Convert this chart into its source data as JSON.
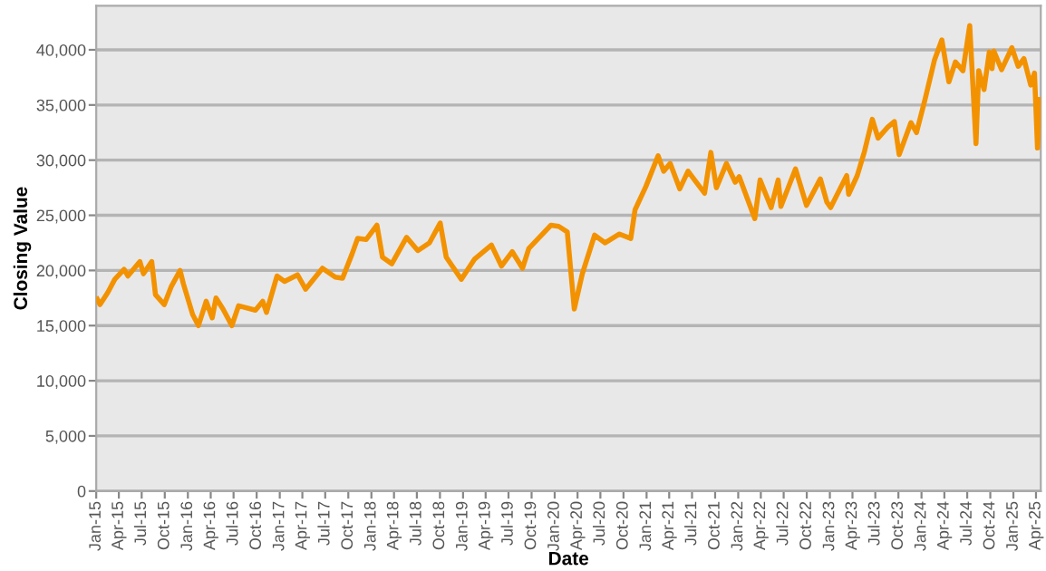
{
  "chart_data": {
    "type": "line",
    "xlabel": "Date",
    "ylabel": "Closing Value",
    "x": [
      "2015-01-05",
      "2015-01-16",
      "2015-02-16",
      "2015-03-16",
      "2015-04-22",
      "2015-05-07",
      "2015-06-24",
      "2015-07-08",
      "2015-08-10",
      "2015-08-25",
      "2015-09-29",
      "2015-10-26",
      "2015-12-01",
      "2015-12-14",
      "2016-01-20",
      "2016-02-12",
      "2016-03-14",
      "2016-04-07",
      "2016-04-22",
      "2016-05-20",
      "2016-06-24",
      "2016-07-21",
      "2016-09-26",
      "2016-10-25",
      "2016-11-09",
      "2016-12-21",
      "2017-01-20",
      "2017-03-13",
      "2017-04-14",
      "2017-06-20",
      "2017-08-10",
      "2017-09-08",
      "2017-10-16",
      "2017-11-07",
      "2017-12-11",
      "2018-01-23",
      "2018-02-14",
      "2018-03-23",
      "2018-05-21",
      "2018-07-05",
      "2018-08-20",
      "2018-10-02",
      "2018-10-26",
      "2018-12-25",
      "2019-02-15",
      "2019-04-24",
      "2019-06-03",
      "2019-07-16",
      "2019-08-26",
      "2019-09-20",
      "2019-12-17",
      "2020-01-17",
      "2020-02-20",
      "2020-03-19",
      "2020-04-20",
      "2020-06-08",
      "2020-07-20",
      "2020-09-15",
      "2020-10-30",
      "2020-11-16",
      "2020-12-29",
      "2021-02-16",
      "2021-03-10",
      "2021-04-05",
      "2021-05-13",
      "2021-06-15",
      "2021-08-20",
      "2021-09-14",
      "2021-10-06",
      "2021-11-15",
      "2021-12-20",
      "2022-01-05",
      "2022-03-08",
      "2022-03-29",
      "2022-05-12",
      "2022-06-09",
      "2022-06-20",
      "2022-08-17",
      "2022-09-30",
      "2022-11-24",
      "2022-12-20",
      "2023-01-04",
      "2023-03-09",
      "2023-03-17",
      "2023-04-20",
      "2023-05-19",
      "2023-06-19",
      "2023-07-12",
      "2023-08-20",
      "2023-09-15",
      "2023-10-04",
      "2023-11-20",
      "2023-12-12",
      "2024-01-15",
      "2024-02-22",
      "2024-03-22",
      "2024-04-19",
      "2024-05-15",
      "2024-06-14",
      "2024-07-11",
      "2024-08-05",
      "2024-08-16",
      "2024-09-06",
      "2024-09-27",
      "2024-10-08",
      "2024-10-15",
      "2024-11-15",
      "2024-12-26",
      "2025-01-20",
      "2025-02-12",
      "2025-03-11",
      "2025-03-26",
      "2025-04-07",
      "2025-04-17"
    ],
    "series": [
      {
        "color": "#f39200",
        "values": [
          17400,
          16900,
          18000,
          19200,
          20100,
          19500,
          20800,
          19700,
          20800,
          17800,
          16900,
          18500,
          20000,
          18800,
          16000,
          15000,
          17200,
          15700,
          17500,
          16500,
          15000,
          16800,
          16400,
          17200,
          16200,
          19500,
          19000,
          19600,
          18300,
          20200,
          19400,
          19300,
          21500,
          22900,
          22800,
          24100,
          21200,
          20600,
          23000,
          21800,
          22500,
          24300,
          21200,
          19200,
          21000,
          22300,
          20400,
          21700,
          20200,
          22000,
          24100,
          24000,
          23500,
          16500,
          19700,
          23200,
          22500,
          23300,
          22900,
          25500,
          27600,
          30400,
          29000,
          29700,
          27400,
          29000,
          27000,
          30700,
          27500,
          29700,
          28000,
          28500,
          24700,
          28200,
          25700,
          28200,
          25800,
          29200,
          25900,
          28300,
          26200,
          25700,
          28600,
          26900,
          28600,
          30800,
          33700,
          32000,
          33000,
          33500,
          30500,
          33400,
          32500,
          35500,
          39100,
          40900,
          37100,
          38900,
          38100,
          42200,
          31500,
          38100,
          36400,
          39800,
          38300,
          39900,
          38200,
          40200,
          38500,
          39200,
          36800,
          37900,
          31100,
          35500
        ]
      }
    ],
    "xlim": [
      "2015-01-01",
      "2025-04-20"
    ],
    "xticks": [
      {
        "value": "2015-01-01",
        "label": "Jan-15"
      },
      {
        "value": "2015-04-01",
        "label": "Apr-15"
      },
      {
        "value": "2015-07-01",
        "label": "Jul-15"
      },
      {
        "value": "2015-10-01",
        "label": "Oct-15"
      },
      {
        "value": "2016-01-01",
        "label": "Jan-16"
      },
      {
        "value": "2016-04-01",
        "label": "Apr-16"
      },
      {
        "value": "2016-07-01",
        "label": "Jul-16"
      },
      {
        "value": "2016-10-01",
        "label": "Oct-16"
      },
      {
        "value": "2017-01-01",
        "label": "Jan-17"
      },
      {
        "value": "2017-04-01",
        "label": "Apr-17"
      },
      {
        "value": "2017-07-01",
        "label": "Jul-17"
      },
      {
        "value": "2017-10-01",
        "label": "Oct-17"
      },
      {
        "value": "2018-01-01",
        "label": "Jan-18"
      },
      {
        "value": "2018-04-01",
        "label": "Apr-18"
      },
      {
        "value": "2018-07-01",
        "label": "Jul-18"
      },
      {
        "value": "2018-10-01",
        "label": "Oct-18"
      },
      {
        "value": "2019-01-01",
        "label": "Jan-19"
      },
      {
        "value": "2019-04-01",
        "label": "Apr-19"
      },
      {
        "value": "2019-07-01",
        "label": "Jul-19"
      },
      {
        "value": "2019-10-01",
        "label": "Oct-19"
      },
      {
        "value": "2020-01-01",
        "label": "Jan-20"
      },
      {
        "value": "2020-04-01",
        "label": "Apr-20"
      },
      {
        "value": "2020-07-01",
        "label": "Jul-20"
      },
      {
        "value": "2020-10-01",
        "label": "Oct-20"
      },
      {
        "value": "2021-01-01",
        "label": "Jan-21"
      },
      {
        "value": "2021-04-01",
        "label": "Apr-21"
      },
      {
        "value": "2021-07-01",
        "label": "Jul-21"
      },
      {
        "value": "2021-10-01",
        "label": "Oct-21"
      },
      {
        "value": "2022-01-01",
        "label": "Jan-22"
      },
      {
        "value": "2022-04-01",
        "label": "Apr-22"
      },
      {
        "value": "2022-07-01",
        "label": "Jul-22"
      },
      {
        "value": "2022-10-01",
        "label": "Oct-22"
      },
      {
        "value": "2023-01-01",
        "label": "Jan-23"
      },
      {
        "value": "2023-04-01",
        "label": "Apr-23"
      },
      {
        "value": "2023-07-01",
        "label": "Jul-23"
      },
      {
        "value": "2023-10-01",
        "label": "Oct-23"
      },
      {
        "value": "2024-01-01",
        "label": "Jan-24"
      },
      {
        "value": "2024-04-01",
        "label": "Apr-24"
      },
      {
        "value": "2024-07-01",
        "label": "Jul-24"
      },
      {
        "value": "2024-10-01",
        "label": "Oct-24"
      },
      {
        "value": "2025-01-01",
        "label": "Jan-25"
      },
      {
        "value": "2025-04-01",
        "label": "Apr-25"
      }
    ],
    "ylim": [
      0,
      44000
    ],
    "yticks": [
      {
        "value": 0,
        "label": "0"
      },
      {
        "value": 5000,
        "label": "5,000"
      },
      {
        "value": 10000,
        "label": "10,000"
      },
      {
        "value": 15000,
        "label": "15,000"
      },
      {
        "value": 20000,
        "label": "20,000"
      },
      {
        "value": 25000,
        "label": "25,000"
      },
      {
        "value": 30000,
        "label": "30,000"
      },
      {
        "value": 35000,
        "label": "35,000"
      },
      {
        "value": 40000,
        "label": "40,000"
      }
    ],
    "grid": "y",
    "line_style": "solid",
    "marker": "none"
  }
}
